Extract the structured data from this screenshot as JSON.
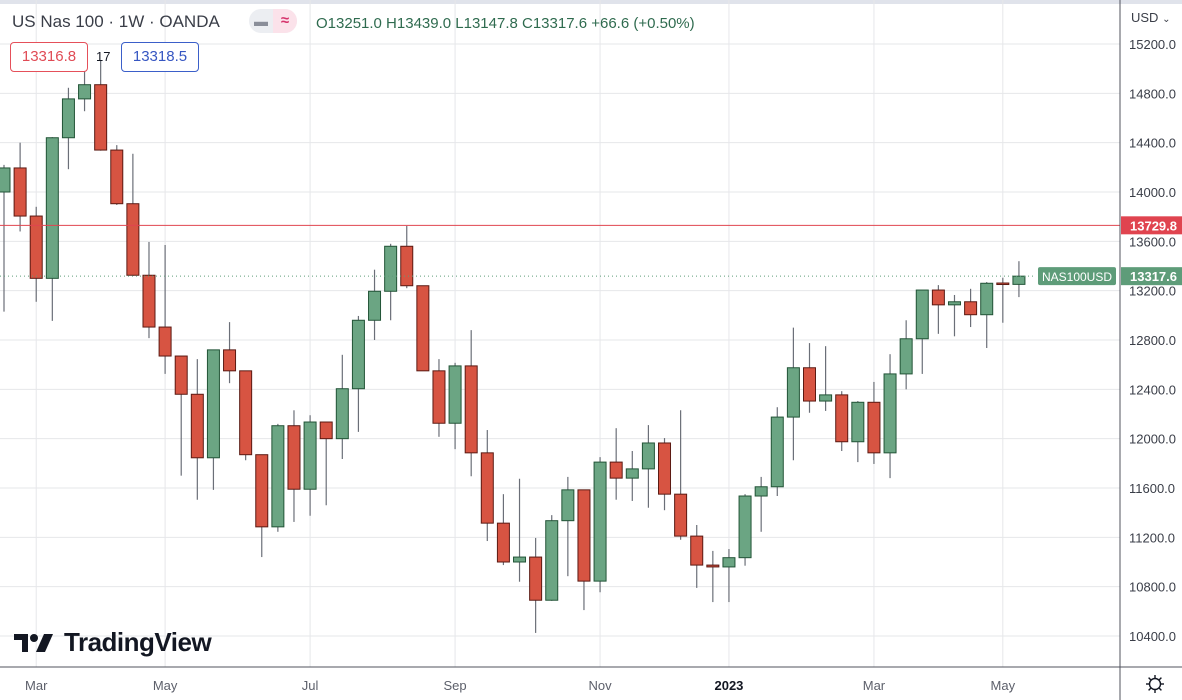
{
  "header": {
    "symbol_title": "US Nas 100 · 1W · OANDA",
    "pill_left_icon": "minus-icon",
    "pill_right_icon": "approx-icon",
    "ohlc_text": "O13251.0 H13439.0 L13147.8 C13317.6 +66.6 (+0.50%)",
    "bid": "13316.8",
    "spread": "17",
    "ask": "13318.5"
  },
  "price_axis": {
    "currency": "USD",
    "currency_icon": "chevron-down-icon",
    "settings_icon": "gear-icon"
  },
  "watermark": "TradingView",
  "colors": {
    "up_fill": "#6ba583",
    "up_border": "#225437",
    "down_fill": "#d75442",
    "down_border": "#5b1a13",
    "level_line": "#e0444f",
    "last_price_label": "#5e9c79"
  },
  "chart_data": {
    "type": "candlestick",
    "title": "US Nas 100 · 1W · OANDA",
    "ylim": [
      10150,
      15400
    ],
    "grid": true,
    "y_ticks": [
      "15200.0",
      "14800.0",
      "14400.0",
      "14000.0",
      "13600.0",
      "13200.0",
      "12800.0",
      "12400.0",
      "12000.0",
      "11600.0",
      "11200.0",
      "10800.0",
      "10400.0"
    ],
    "y_tick_values": [
      15200,
      14800,
      14400,
      14000,
      13600,
      13200,
      12800,
      12400,
      12000,
      11600,
      11200,
      10800,
      10400
    ],
    "x_ticks": [
      {
        "label": "Mar",
        "index": 2
      },
      {
        "label": "May",
        "index": 10
      },
      {
        "label": "Jul",
        "index": 19
      },
      {
        "label": "Sep",
        "index": 28
      },
      {
        "label": "Nov",
        "index": 37
      },
      {
        "label": "2023",
        "index": 45
      },
      {
        "label": "Mar",
        "index": 54
      },
      {
        "label": "May",
        "index": 62
      }
    ],
    "horizontal_level": {
      "value": 13729.8,
      "label": "13729.8"
    },
    "last_price": {
      "value": 13317.6,
      "label": "13317.6",
      "symbol": "NAS100USD"
    },
    "ohlc_columns": [
      "open",
      "high",
      "low",
      "close"
    ],
    "candles": [
      [
        14000,
        14220,
        13030,
        14195
      ],
      [
        14195,
        14400,
        13680,
        13805
      ],
      [
        13805,
        13880,
        13110,
        13300
      ],
      [
        13300,
        14445,
        12955,
        14440
      ],
      [
        14440,
        14845,
        14185,
        14755
      ],
      [
        14755,
        15070,
        14655,
        14870
      ],
      [
        14870,
        15070,
        14335,
        14340
      ],
      [
        14340,
        14380,
        13895,
        13905
      ],
      [
        13905,
        14310,
        13320,
        13325
      ],
      [
        13325,
        13595,
        12815,
        12905
      ],
      [
        12905,
        13570,
        12525,
        12670
      ],
      [
        12670,
        12670,
        11700,
        12360
      ],
      [
        12360,
        12645,
        11505,
        11845
      ],
      [
        11845,
        12720,
        11585,
        12720
      ],
      [
        12720,
        12945,
        12450,
        12550
      ],
      [
        12550,
        12550,
        11825,
        11870
      ],
      [
        11870,
        11870,
        11040,
        11285
      ],
      [
        11285,
        12120,
        11245,
        12105
      ],
      [
        12105,
        12230,
        11325,
        11590
      ],
      [
        11590,
        12190,
        11375,
        12135
      ],
      [
        12135,
        12135,
        11460,
        12000
      ],
      [
        12000,
        12680,
        11835,
        12405
      ],
      [
        12405,
        12995,
        12055,
        12960
      ],
      [
        12960,
        13370,
        12800,
        13195
      ],
      [
        13195,
        13580,
        12960,
        13560
      ],
      [
        13560,
        13725,
        13220,
        13240
      ],
      [
        13240,
        13240,
        12550,
        12550
      ],
      [
        12550,
        12645,
        12015,
        12125
      ],
      [
        12125,
        12615,
        11915,
        12590
      ],
      [
        12590,
        12880,
        11695,
        11885
      ],
      [
        11885,
        12070,
        11170,
        11315
      ],
      [
        11315,
        11550,
        10975,
        11000
      ],
      [
        11000,
        11675,
        10840,
        11040
      ],
      [
        11040,
        11195,
        10425,
        10690
      ],
      [
        10690,
        11380,
        10685,
        11335
      ],
      [
        11335,
        11690,
        10885,
        11585
      ],
      [
        11585,
        11585,
        10610,
        10845
      ],
      [
        10845,
        11850,
        10755,
        11810
      ],
      [
        11810,
        12085,
        11505,
        11680
      ],
      [
        11680,
        11900,
        11495,
        11755
      ],
      [
        11755,
        12110,
        11440,
        11965
      ],
      [
        11965,
        12005,
        11420,
        11550
      ],
      [
        11550,
        12230,
        11180,
        11210
      ],
      [
        11210,
        11300,
        10790,
        10975
      ],
      [
        10975,
        11090,
        10675,
        10960
      ],
      [
        10960,
        11105,
        10675,
        11035
      ],
      [
        11035,
        11550,
        10970,
        11535
      ],
      [
        11535,
        11690,
        11245,
        11610
      ],
      [
        11610,
        12255,
        11535,
        12175
      ],
      [
        12175,
        12900,
        11825,
        12575
      ],
      [
        12575,
        12775,
        12210,
        12305
      ],
      [
        12305,
        12750,
        12225,
        12355
      ],
      [
        12355,
        12385,
        11900,
        11975
      ],
      [
        11975,
        12305,
        11810,
        12295
      ],
      [
        12295,
        12460,
        11795,
        11885
      ],
      [
        11885,
        12685,
        11680,
        12525
      ],
      [
        12525,
        12960,
        12400,
        12810
      ],
      [
        12810,
        13205,
        12525,
        13205
      ],
      [
        13205,
        13245,
        12850,
        13085
      ],
      [
        13085,
        13165,
        12830,
        13110
      ],
      [
        13110,
        13215,
        12905,
        13005
      ],
      [
        13005,
        13270,
        12735,
        13260
      ],
      [
        13262,
        13305,
        12940,
        13251
      ],
      [
        13251,
        13439,
        13147.8,
        13317.6
      ]
    ]
  }
}
